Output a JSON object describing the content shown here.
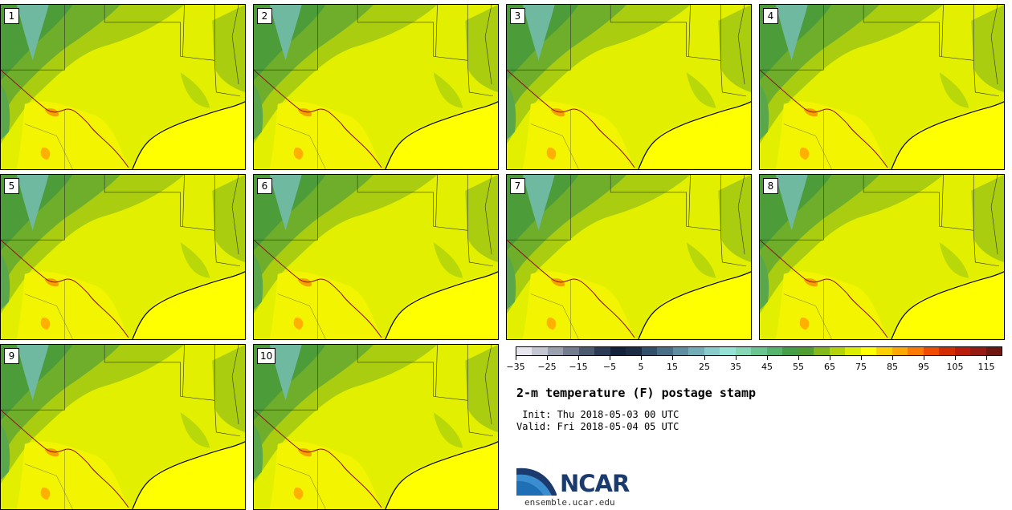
{
  "title": "2-m temperature (F) postage stamp",
  "init_line": " Init: Thu 2018-05-03 00 UTC",
  "valid_line": "Valid: Fri 2018-05-04 05 UTC",
  "panels": [
    {
      "label": "1"
    },
    {
      "label": "2"
    },
    {
      "label": "3"
    },
    {
      "label": "4"
    },
    {
      "label": "5"
    },
    {
      "label": "6"
    },
    {
      "label": "7"
    },
    {
      "label": "8"
    },
    {
      "label": "9"
    },
    {
      "label": "10"
    }
  ],
  "colorbar": {
    "colors": [
      "#e6e6ee",
      "#c3c6d1",
      "#9aa0ae",
      "#747d8f",
      "#4c5a70",
      "#2b3a55",
      "#13213a",
      "#1d2c45",
      "#33506a",
      "#4a6e86",
      "#5e8ea0",
      "#73aeb8",
      "#87cbca",
      "#95e3d6",
      "#86d8b4",
      "#6bc58e",
      "#56b46c",
      "#459f47",
      "#4f9e2f",
      "#83b91a",
      "#b3d40c",
      "#dced00",
      "#ffff00",
      "#ffcf00",
      "#ffa800",
      "#ff7a00",
      "#f04c00",
      "#d22c00",
      "#b81d0c",
      "#951a14",
      "#6e1610"
    ],
    "tick_labels": [
      "−35",
      "−25",
      "−15",
      "−5",
      "5",
      "15",
      "25",
      "35",
      "45",
      "55",
      "65",
      "75",
      "85",
      "95",
      "105",
      "115"
    ]
  },
  "logo": {
    "text": "NCAR",
    "url": "ensemble.ucar.edu"
  }
}
